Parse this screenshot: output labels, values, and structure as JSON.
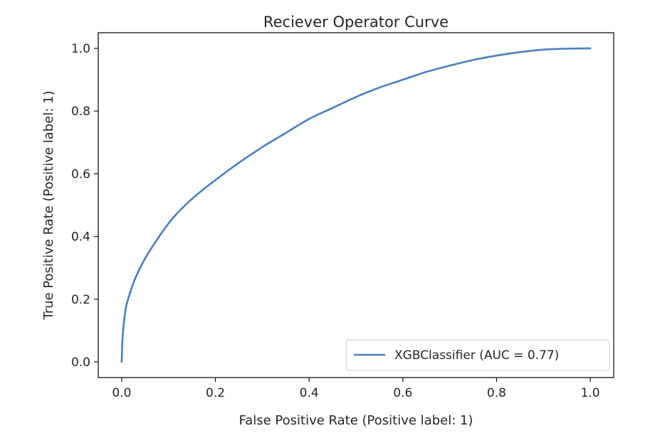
{
  "chart_data": {
    "type": "line",
    "title": "Reciever Operator Curve",
    "xlabel": "False Positive Rate (Positive label: 1)",
    "ylabel": "True Positive Rate (Positive label: 1)",
    "xlim": [
      -0.05,
      1.05
    ],
    "ylim": [
      -0.05,
      1.05
    ],
    "xticks": [
      0.0,
      0.2,
      0.4,
      0.6,
      0.8,
      1.0
    ],
    "yticks": [
      0.0,
      0.2,
      0.4,
      0.6,
      0.8,
      1.0
    ],
    "xtick_labels": [
      "0.0",
      "0.2",
      "0.4",
      "0.6",
      "0.8",
      "1.0"
    ],
    "ytick_labels": [
      "0.0",
      "0.2",
      "0.4",
      "0.6",
      "0.8",
      "1.0"
    ],
    "grid": false,
    "legend_position": "lower-right",
    "series": [
      {
        "name": "XGBClassifier (AUC = 0.77)",
        "color": "#4a7fbf",
        "x": [
          0.0,
          0.002,
          0.005,
          0.01,
          0.02,
          0.03,
          0.05,
          0.08,
          0.11,
          0.15,
          0.2,
          0.25,
          0.3,
          0.35,
          0.4,
          0.45,
          0.5,
          0.55,
          0.6,
          0.65,
          0.7,
          0.75,
          0.8,
          0.85,
          0.9,
          0.95,
          1.0
        ],
        "y": [
          0.0,
          0.08,
          0.13,
          0.18,
          0.23,
          0.27,
          0.33,
          0.4,
          0.46,
          0.52,
          0.58,
          0.635,
          0.685,
          0.73,
          0.775,
          0.81,
          0.845,
          0.875,
          0.9,
          0.925,
          0.945,
          0.963,
          0.977,
          0.988,
          0.996,
          0.999,
          1.0
        ]
      }
    ]
  }
}
